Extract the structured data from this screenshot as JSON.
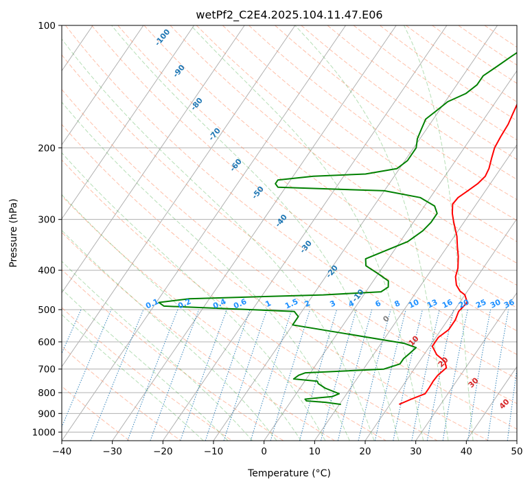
{
  "chart_data": {
    "type": "line",
    "title": "wetPf2_C2E4.2025.104.11.47.E06",
    "xlabel": "Temperature (°C)",
    "ylabel": "Pressure (hPa)",
    "xlim": [
      -40,
      50
    ],
    "ylim": [
      1050,
      100
    ],
    "y_scale": "log",
    "grid": true,
    "x_ticks": [
      -40,
      -30,
      -20,
      -10,
      0,
      10,
      20,
      30,
      40,
      50
    ],
    "x_tick_labels": [
      "−40",
      "−30",
      "−20",
      "−10",
      "0",
      "10",
      "20",
      "30",
      "40",
      "50"
    ],
    "y_ticks": [
      100,
      200,
      300,
      400,
      500,
      600,
      700,
      800,
      900,
      1000
    ],
    "y_tick_labels": [
      "100",
      "200",
      "300",
      "400",
      "500",
      "600",
      "700",
      "800",
      "900",
      "1000"
    ],
    "series": [
      {
        "color": "#ff0000",
        "points": [
          [
            21.8,
            855
          ],
          [
            23.5,
            830
          ],
          [
            25.5,
            805
          ],
          [
            25.5,
            780
          ],
          [
            25.4,
            750
          ],
          [
            25.5,
            725
          ],
          [
            26.2,
            695
          ],
          [
            25.0,
            670
          ],
          [
            22.5,
            645
          ],
          [
            20.5,
            615
          ],
          [
            20.5,
            585
          ],
          [
            21.5,
            560
          ],
          [
            21.5,
            530
          ],
          [
            21.0,
            505
          ],
          [
            21.5,
            480
          ],
          [
            20.0,
            460
          ],
          [
            18.5,
            450
          ],
          [
            17.0,
            435
          ],
          [
            15.7,
            415
          ],
          [
            15.0,
            395
          ],
          [
            13.5,
            370
          ],
          [
            12.0,
            350
          ],
          [
            10.5,
            330
          ],
          [
            8.0,
            305
          ],
          [
            6.5,
            290
          ],
          [
            5.3,
            275
          ],
          [
            5.5,
            265
          ],
          [
            6.5,
            255
          ],
          [
            7.5,
            245
          ],
          [
            8.0,
            235
          ],
          [
            7.7,
            225
          ],
          [
            6.8,
            212
          ],
          [
            6.0,
            200
          ],
          [
            5.7,
            188
          ],
          [
            5.5,
            175
          ],
          [
            5.0,
            165
          ],
          [
            4.5,
            155
          ],
          [
            3.3,
            145
          ],
          [
            2.5,
            137
          ],
          [
            2.7,
            130
          ],
          [
            3.8,
            124
          ],
          [
            5.5,
            119
          ],
          [
            6.0,
            114
          ],
          [
            5.7,
            108
          ],
          [
            5.2,
            104
          ],
          [
            5.0,
            100
          ]
        ]
      },
      {
        "color": "#008000",
        "points": [
          [
            10.3,
            855
          ],
          [
            7.0,
            845
          ],
          [
            3.0,
            838
          ],
          [
            2.5,
            830
          ],
          [
            4.5,
            825
          ],
          [
            7.5,
            818
          ],
          [
            8.5,
            805
          ],
          [
            5.0,
            780
          ],
          [
            3.0,
            760
          ],
          [
            2.5,
            750
          ],
          [
            -2.5,
            740
          ],
          [
            -2.0,
            725
          ],
          [
            -1.0,
            715
          ],
          [
            14.0,
            700
          ],
          [
            16.5,
            680
          ],
          [
            16.5,
            660
          ],
          [
            17.0,
            640
          ],
          [
            17.5,
            620
          ],
          [
            14.5,
            605
          ],
          [
            0.5,
            570
          ],
          [
            -10.0,
            545
          ],
          [
            -10.0,
            520
          ],
          [
            -11.5,
            505
          ],
          [
            -38.0,
            490
          ],
          [
            -39.5,
            480
          ],
          [
            -34.0,
            470
          ],
          [
            -8.0,
            460
          ],
          [
            3.0,
            452
          ],
          [
            3.8,
            440
          ],
          [
            3.0,
            425
          ],
          [
            0.0,
            408
          ],
          [
            -3.5,
            390
          ],
          [
            -4.5,
            375
          ],
          [
            -2.0,
            360
          ],
          [
            1.5,
            340
          ],
          [
            3.0,
            320
          ],
          [
            3.5,
            305
          ],
          [
            3.5,
            290
          ],
          [
            2.0,
            278
          ],
          [
            -2.0,
            265
          ],
          [
            -10.0,
            255
          ],
          [
            -31.5,
            250
          ],
          [
            -32.5,
            245
          ],
          [
            -32.5,
            240
          ],
          [
            -26.0,
            235
          ],
          [
            -16.0,
            232
          ],
          [
            -10.5,
            225
          ],
          [
            -9.5,
            215
          ],
          [
            -9.5,
            200
          ],
          [
            -10.5,
            190
          ],
          [
            -11.0,
            180
          ],
          [
            -11.5,
            170
          ],
          [
            -10.5,
            162
          ],
          [
            -9.5,
            154
          ],
          [
            -7.0,
            147
          ],
          [
            -6.0,
            140
          ],
          [
            -6.0,
            133
          ],
          [
            -4.5,
            126
          ],
          [
            -3.0,
            119
          ],
          [
            -1.5,
            113
          ],
          [
            -0.5,
            108
          ],
          [
            0.0,
            104
          ],
          [
            1.0,
            100
          ]
        ]
      }
    ],
    "annotations": {
      "dry_adiabats": [
        "-100",
        "-90",
        "-80",
        "-70",
        "-60",
        "-50",
        "-40",
        "-30",
        "-20",
        "-10"
      ],
      "mixing_ratios": [
        "0.1",
        "0.2",
        "0.4",
        "0.6",
        "1",
        "1.5",
        "2",
        "3",
        "4",
        "6",
        "8",
        "10",
        "13",
        "16",
        "20",
        "25",
        "30",
        "36"
      ],
      "moist_adiabats": [
        "0",
        "10",
        "20",
        "30",
        "40"
      ]
    },
    "colors": {
      "temperature": "#ff0000",
      "dewpoint": "#008000",
      "dry_adiabat": "#ff8b60",
      "moist_adiabat": "#2ca02c",
      "mixing_ratio": "#1f77b4",
      "isotherm": "#808080",
      "dry_label": "#1f77b4",
      "mixing_label": "#1e90ff",
      "moist_label_zero": "#808080",
      "moist_label": "#d62728"
    }
  }
}
